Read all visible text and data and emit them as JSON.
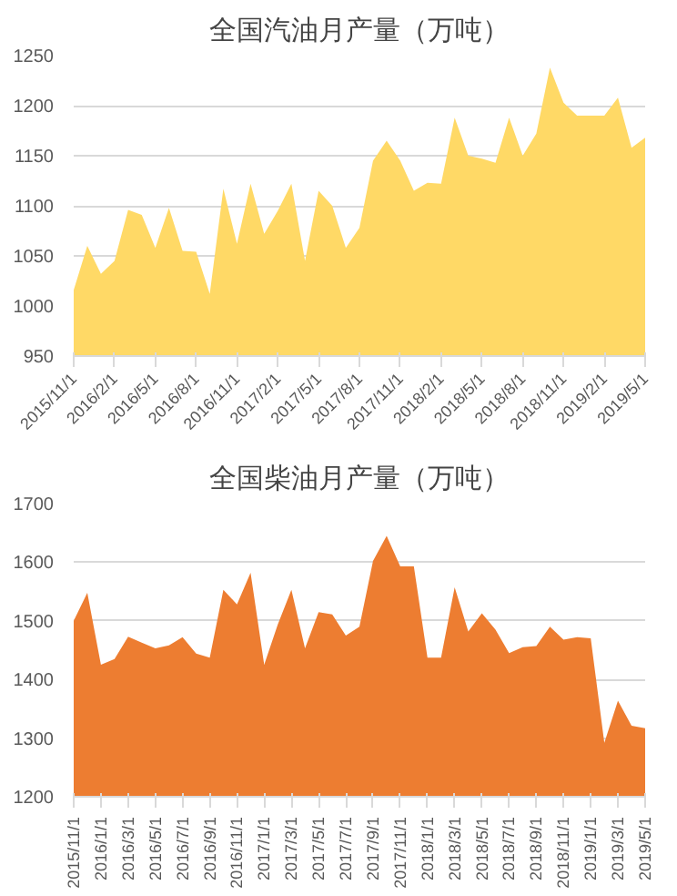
{
  "chart_data": [
    {
      "type": "area",
      "title": "全国汽油月产量（万吨）",
      "categories": [
        "2015/11/1",
        null,
        null,
        "2016/2/1",
        null,
        null,
        "2016/5/1",
        null,
        null,
        "2016/8/1",
        null,
        null,
        "2016/11/1",
        null,
        null,
        "2017/2/1",
        null,
        null,
        "2017/5/1",
        null,
        null,
        "2017/8/1",
        null,
        null,
        "2017/11/1",
        null,
        null,
        "2018/2/1",
        null,
        null,
        "2018/5/1",
        null,
        null,
        "2018/8/1",
        null,
        null,
        "2018/11/1",
        null,
        null,
        "2019/2/1",
        null,
        null,
        "2019/5/1"
      ],
      "series": [
        {
          "color": "#ffd966",
          "values": [
            1016,
            1060,
            1032,
            1045,
            1096,
            1091,
            1058,
            1098,
            1055,
            1054,
            1012,
            1117,
            1062,
            1122,
            1072,
            1095,
            1122,
            1045,
            1115,
            1100,
            1058,
            1078,
            1145,
            1165,
            1145,
            1115,
            1123,
            1122,
            1188,
            1150,
            1147,
            1143,
            1188,
            1150,
            1172,
            1238,
            1203,
            1190,
            1190,
            1190,
            1208,
            1158,
            1168
          ]
        }
      ],
      "ylim": [
        950,
        1250
      ],
      "yticks": [
        950,
        1000,
        1050,
        1100,
        1150,
        1200,
        1250
      ],
      "grid": "y"
    },
    {
      "type": "area",
      "title": "全国柴油月产量（万吨）",
      "categories": [
        "2015/11/1",
        null,
        "2016/1/1",
        null,
        "2016/3/1",
        null,
        "2016/5/1",
        null,
        "2016/7/1",
        null,
        "2016/9/1",
        null,
        "2016/11/1",
        null,
        "2017/1/1",
        null,
        "2017/3/1",
        null,
        "2017/5/1",
        null,
        "2017/7/1",
        null,
        "2017/9/1",
        null,
        "2017/11/1",
        null,
        "2018/1/1",
        null,
        "2018/3/1",
        null,
        "2018/5/1",
        null,
        "2018/7/1",
        null,
        "2018/9/1",
        null,
        "2018/11/1",
        null,
        "2019/1/1",
        null,
        "2019/3/1",
        null,
        "2019/5/1"
      ],
      "series": [
        {
          "color": "#ed7d31",
          "values": [
            1500,
            1548,
            1425,
            1435,
            1473,
            1463,
            1453,
            1458,
            1472,
            1444,
            1437,
            1553,
            1528,
            1582,
            1425,
            1494,
            1553,
            1453,
            1515,
            1511,
            1475,
            1490,
            1602,
            1645,
            1593,
            1593,
            1437,
            1437,
            1557,
            1482,
            1513,
            1485,
            1445,
            1455,
            1457,
            1490,
            1468,
            1472,
            1470,
            1292,
            1364,
            1321,
            1317
          ]
        }
      ],
      "ylim": [
        1200,
        1700
      ],
      "yticks": [
        1200,
        1300,
        1400,
        1500,
        1600,
        1700
      ],
      "grid": "y"
    }
  ]
}
